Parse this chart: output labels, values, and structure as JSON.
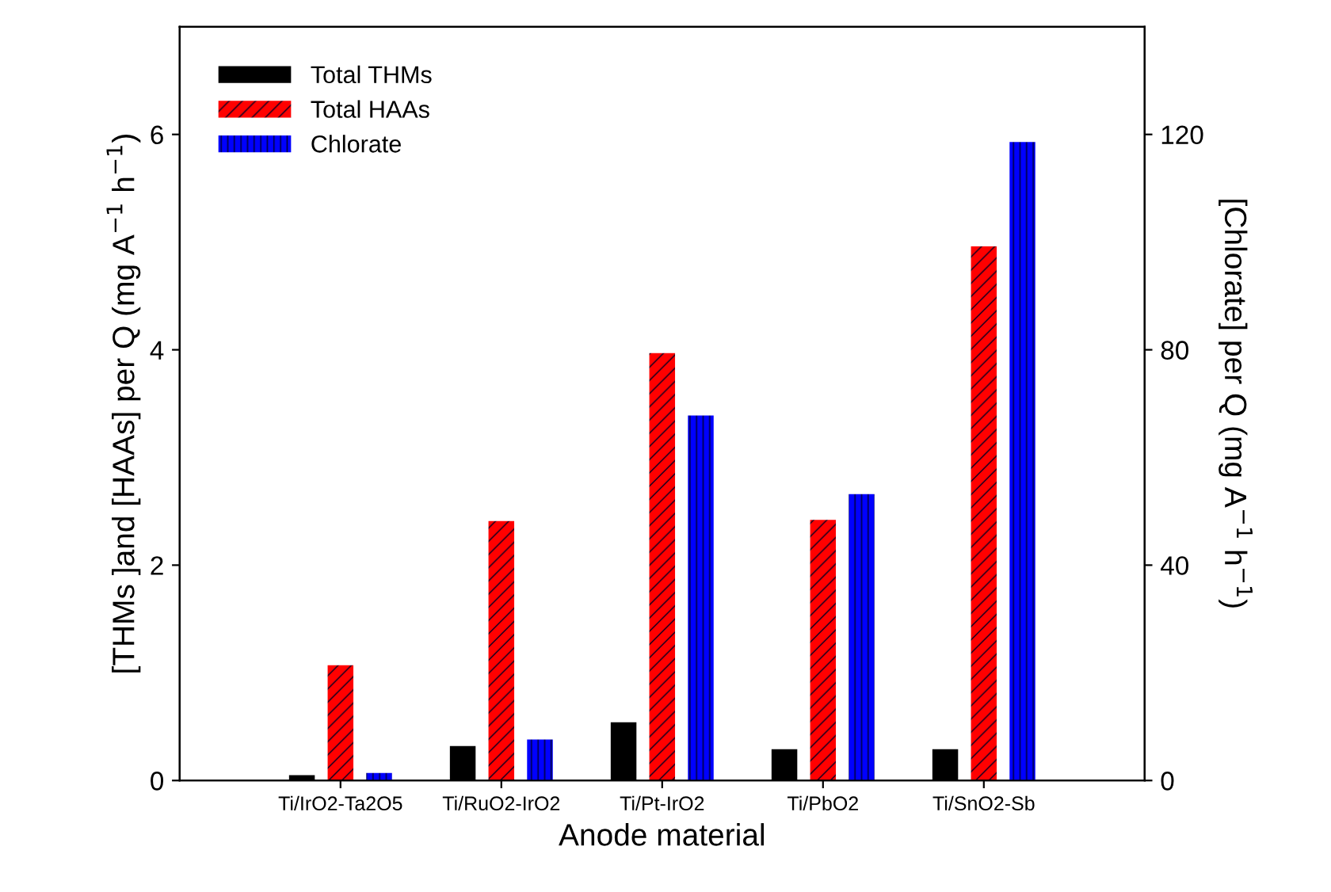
{
  "chart_data": {
    "type": "bar",
    "xlabel": "Anode material",
    "ylabel": "[THMs ]and [HAAs] per Q (mg A$^{−1}$ h$^{−1}$)",
    "y2label": "[Chlorate] per Q (mg A$^{−1}$ h$^{−1}$)",
    "categories": [
      "Ti/IrO2-Ta2O5",
      "Ti/RuO2-IrO2",
      "Ti/Pt-IrO2",
      "Ti/PbO2",
      "Ti/SnO2-Sb"
    ],
    "series": [
      {
        "name": "Total THMs",
        "color": "#000000",
        "values": [
          0.05,
          0.32,
          0.54,
          0.29,
          0.29
        ]
      },
      {
        "name": "Total HAAs",
        "color": "#ff0000",
        "values": [
          1.07,
          2.41,
          3.97,
          2.42,
          4.96
        ]
      },
      {
        "name": "Chlorate",
        "color": "#0000ff",
        "axis": "y2",
        "values": [
          1.4,
          7.6,
          67.8,
          53.2,
          118.6
        ]
      }
    ],
    "ylim": [
      0,
      7
    ],
    "yticks": [
      0,
      2,
      4,
      6
    ],
    "y2lim": [
      0,
      140
    ],
    "y2ticks": [
      0,
      40,
      80,
      120
    ],
    "legend": "top left",
    "grid": false
  }
}
